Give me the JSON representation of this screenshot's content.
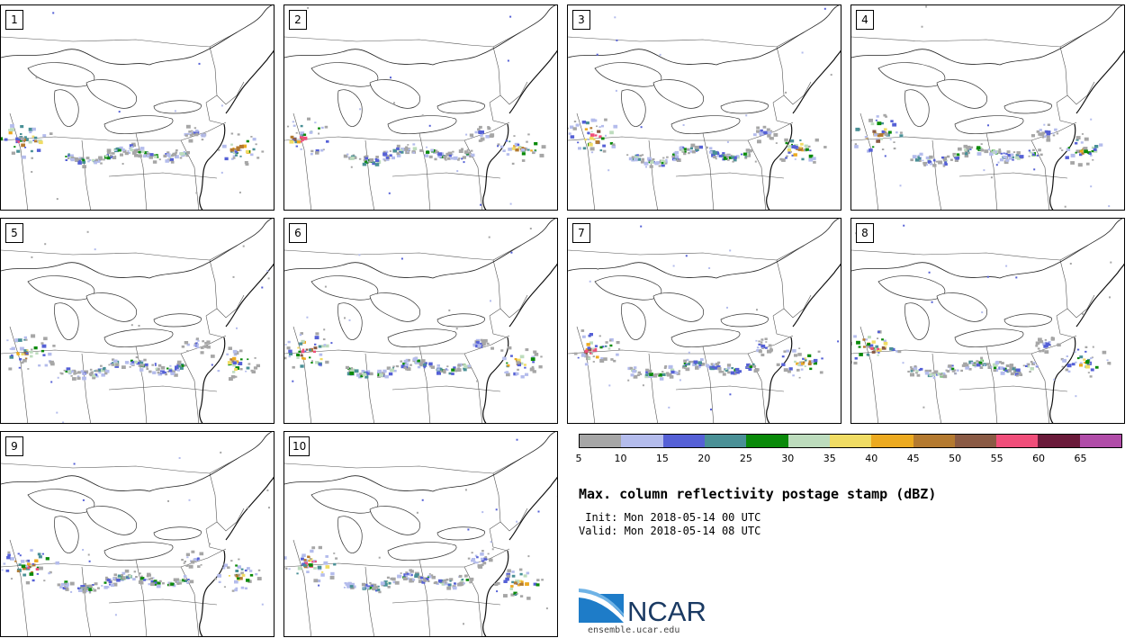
{
  "colors": {
    "bins": [
      "#a6a6a6",
      "#b4bcec",
      "#5560d6",
      "#4a9096",
      "#0a8a0a",
      "#bddcbd",
      "#f0dc64",
      "#ecaa20",
      "#b47a30",
      "#8a5a44",
      "#f04e7a",
      "#6a1a3a",
      "#b04ca8"
    ]
  },
  "panels": [
    {
      "label": "1"
    },
    {
      "label": "2"
    },
    {
      "label": "3"
    },
    {
      "label": "4"
    },
    {
      "label": "5"
    },
    {
      "label": "6"
    },
    {
      "label": "7"
    },
    {
      "label": "8"
    },
    {
      "label": "9"
    },
    {
      "label": "10"
    }
  ],
  "colorbar": {
    "ticks": [
      "5",
      "10",
      "15",
      "20",
      "25",
      "30",
      "35",
      "40",
      "45",
      "50",
      "55",
      "60",
      "65"
    ]
  },
  "title": "Max. column reflectivity postage stamp (dBZ)",
  "init_line": " Init: Mon 2018-05-14 00 UTC",
  "valid_line": "Valid: Mon 2018-05-14 08 UTC",
  "logo": {
    "name": "NCAR",
    "site": "ensemble.ucar.edu"
  }
}
